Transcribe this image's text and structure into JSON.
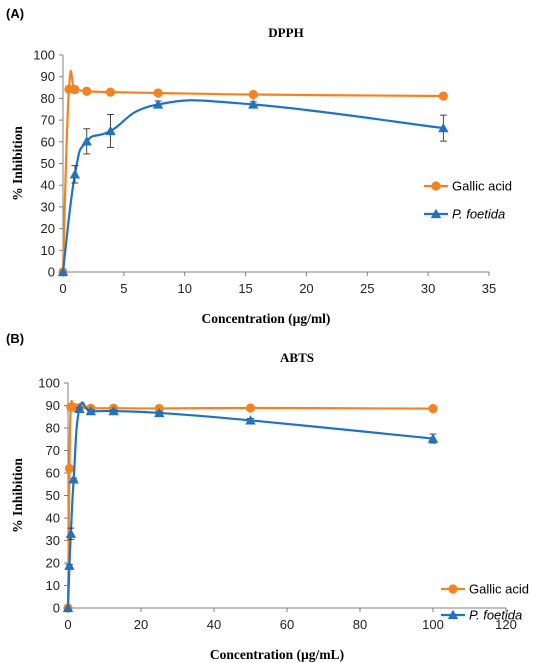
{
  "colors": {
    "gallic": "#F58220",
    "foetida": "#1F73C0",
    "axis": "#808080",
    "error": "#333333"
  },
  "chart_data": [
    {
      "panel_label": "(A)",
      "type": "line",
      "title": "DPPH",
      "xlabel": "Concentration (µg/ml)",
      "ylabel": "% Inhibition",
      "xlim": [
        0,
        35
      ],
      "ylim": [
        0,
        100
      ],
      "x_ticks": [
        0,
        5,
        10,
        15,
        20,
        25,
        30,
        35
      ],
      "y_ticks": [
        0,
        10,
        20,
        30,
        40,
        50,
        60,
        70,
        80,
        90,
        100
      ],
      "grid": false,
      "legend_position": "right",
      "series": [
        {
          "name": "Gallic acid",
          "marker": "circle",
          "x": [
            0,
            0.49,
            0.98,
            1.95,
            3.9,
            7.81,
            15.63,
            31.25
          ],
          "y": [
            0,
            84.2,
            84.1,
            83.3,
            82.9,
            82.5,
            81.8,
            81.1
          ]
        },
        {
          "name": "P. foetida",
          "marker": "triangle",
          "x": [
            0,
            0.98,
            1.95,
            3.9,
            7.81,
            15.63,
            31.25
          ],
          "y": [
            0,
            45,
            60.2,
            65,
            77.2,
            77.2,
            66.3
          ],
          "err": [
            0,
            4,
            5.8,
            7.6,
            1.6,
            1.2,
            6
          ]
        }
      ]
    },
    {
      "panel_label": "(B)",
      "type": "line",
      "title": "ABTS",
      "xlabel": "Concentration (µg/mL)",
      "ylabel": "% Inhibition",
      "xlim": [
        0,
        120
      ],
      "ylim": [
        0,
        100
      ],
      "x_ticks": [
        0,
        20,
        40,
        60,
        80,
        100,
        120
      ],
      "y_ticks": [
        0,
        10,
        20,
        30,
        40,
        50,
        60,
        70,
        80,
        90,
        100
      ],
      "grid": false,
      "legend_position": "right",
      "series": [
        {
          "name": "Gallic acid",
          "marker": "circle",
          "x": [
            0,
            0.39,
            0.78,
            1.56,
            3.13,
            6.25,
            12.5,
            25,
            50,
            100
          ],
          "y": [
            0,
            62,
            89.3,
            89.2,
            89,
            88.8,
            88.8,
            88.7,
            88.9,
            88.6
          ]
        },
        {
          "name": "P. foetida",
          "marker": "triangle",
          "x": [
            0,
            0.39,
            0.78,
            1.56,
            3.13,
            6.25,
            12.5,
            25,
            50,
            100
          ],
          "y": [
            0,
            18.8,
            33,
            57.2,
            88.5,
            87.5,
            87.5,
            86.7,
            83.4,
            75.3
          ],
          "err": [
            0,
            0.5,
            2.5,
            0.5,
            0.5,
            0.5,
            0.5,
            0.5,
            0.8,
            2
          ]
        }
      ]
    }
  ]
}
